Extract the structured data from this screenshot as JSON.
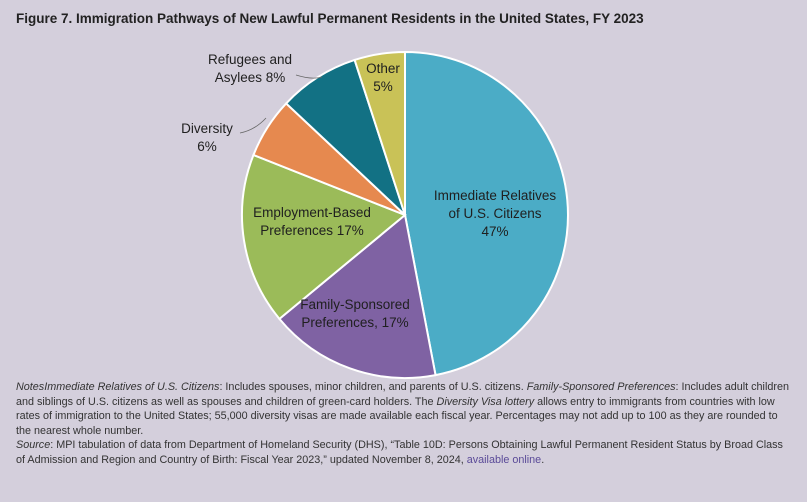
{
  "chart_data": {
    "type": "pie",
    "title": "Figure 7. Immigration Pathways of New Lawful Permanent Residents in the United States, FY 2023",
    "slices": [
      {
        "name": "Immediate Relatives of U.S. Citizens",
        "value": 47,
        "color": "#4bacc6",
        "label_lines": [
          "Immediate Relatives",
          "of U.S. Citizens",
          "47%"
        ]
      },
      {
        "name": "Family-Sponsored Preferences",
        "value": 17,
        "color": "#7f62a3",
        "label_lines": [
          "Family-Sponsored",
          "Preferences, 17%"
        ]
      },
      {
        "name": "Employment-Based Preferences",
        "value": 17,
        "color": "#9bbb59",
        "label_lines": [
          "Employment-Based",
          "Preferences 17%"
        ]
      },
      {
        "name": "Diversity",
        "value": 6,
        "color": "#e6894f",
        "label_lines": [
          "Diversity",
          "6%"
        ]
      },
      {
        "name": "Refugees and Asylees",
        "value": 8,
        "color": "#127184",
        "label_lines": [
          "Refugees and",
          "Asylees 8%"
        ]
      },
      {
        "name": "Other",
        "value": 5,
        "color": "#c9c257",
        "label_lines": [
          "Other",
          "5%"
        ]
      }
    ]
  },
  "notes": {
    "notes_label": "Notes",
    "term_ir": "Immediate Relatives of U.S. Citizens",
    "text_ir": ": Includes spouses, minor children, and parents of U.S. citizens. ",
    "term_fs": "Family-Sponsored Preferences",
    "text_fs": ": Includes adult children and siblings of U.S. citizens as well as spouses and children of green-card holders. The ",
    "term_dv": "Diversity Visa lottery",
    "text_dv": " allows entry to immigrants from countries with low rates of immigration to the United States; 55,000 diversity visas are made available each fiscal year. Percentages may not add up to 100 as they are rounded to the nearest whole number.",
    "source_label": "Source",
    "source_text": ": MPI tabulation of data from Department of Homeland Security (DHS), “Table 10D: Persons Obtaining Lawful Permanent Resident Status by Broad Class of Admission and Region and Country of Birth: Fiscal Year 2023,” updated November 8, 2024, ",
    "link_text": "available online",
    "end_text": "."
  }
}
